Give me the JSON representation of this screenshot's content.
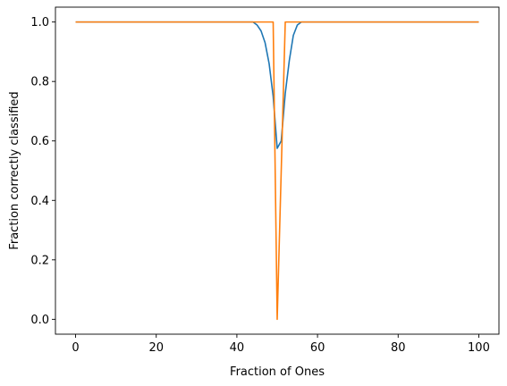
{
  "chart_data": {
    "type": "line",
    "title": "",
    "xlabel": "Fraction of Ones",
    "ylabel": "Fraction correctly classified",
    "xlim": [
      -5,
      105
    ],
    "ylim": [
      -0.05,
      1.05
    ],
    "grid": false,
    "x_ticks": [
      0,
      20,
      40,
      60,
      80,
      100
    ],
    "y_ticks": [
      0.0,
      0.2,
      0.4,
      0.6,
      0.8,
      1.0
    ],
    "x_tick_labels": [
      "0",
      "20",
      "40",
      "60",
      "80",
      "100"
    ],
    "y_tick_labels": [
      "0.0",
      "0.2",
      "0.4",
      "0.6",
      "0.8",
      "1.0"
    ],
    "series": [
      {
        "color": "#1f77b4",
        "x": [
          0,
          44,
          45,
          46,
          47,
          48,
          49,
          50,
          51,
          52,
          53,
          54,
          55,
          56,
          57,
          100
        ],
        "y": [
          1.0,
          1.0,
          0.99,
          0.97,
          0.93,
          0.86,
          0.75,
          0.575,
          0.6,
          0.76,
          0.87,
          0.955,
          0.99,
          1.0,
          1.0,
          1.0
        ]
      },
      {
        "color": "#ff7f0e",
        "x": [
          0,
          49,
          50,
          51,
          52,
          100
        ],
        "y": [
          1.0,
          1.0,
          0.0,
          0.5,
          1.0,
          1.0
        ]
      }
    ]
  }
}
